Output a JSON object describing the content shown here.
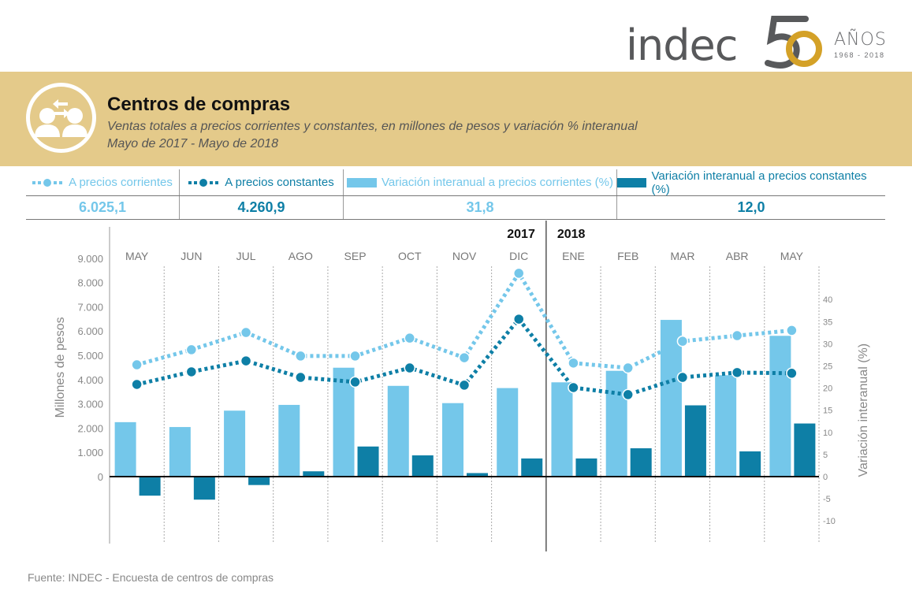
{
  "logo": {
    "wordmark": "indec",
    "anniversary": "50",
    "anios": "AÑOS",
    "years": "1968 - 2018",
    "colors": {
      "gray": "#58595b",
      "gold": "#d4a127"
    }
  },
  "header": {
    "icon": "people-exchange-icon",
    "title": "Centros de compras",
    "subtitle": "Ventas totales a precios corrientes y constantes, en millones de pesos y variación % interanual",
    "period": "Mayo de 2017 - Mayo de 2018",
    "band_color": "#e4ca8a"
  },
  "legend": {
    "items": [
      {
        "label": "A precios corrientes",
        "symbol": "dotted-line-light",
        "value": "6.025,1"
      },
      {
        "label": "A precios constantes",
        "symbol": "dotted-line-dark",
        "value": "4.260,9"
      },
      {
        "label": "Variación interanual a precios corrientes (%)",
        "symbol": "bar-light",
        "value": "31,8"
      },
      {
        "label": "Variación interanual a precios constantes (%)",
        "symbol": "bar-dark",
        "value": "12,0"
      }
    ]
  },
  "chart_data": {
    "type": "bar",
    "title": "Centros de compras",
    "categories": [
      "MAY",
      "JUN",
      "JUL",
      "AGO",
      "SEP",
      "OCT",
      "NOV",
      "DIC",
      "ENE",
      "FEB",
      "MAR",
      "ABR",
      "MAY"
    ],
    "year_labels": [
      {
        "label": "2017",
        "last_index": 7
      },
      {
        "label": "2018",
        "first_index": 8
      }
    ],
    "ylabel": "Millones de pesos",
    "y2label": "Variación interanual (%)",
    "ylim": [
      0,
      9000
    ],
    "yticks": [
      "9.000",
      "8.000",
      "7.000",
      "6.000",
      "5.000",
      "4.000",
      "3.000",
      "2.000",
      "1.000",
      "0"
    ],
    "y2lim": [
      -10,
      40
    ],
    "y2ticks": [
      "40",
      "35",
      "30",
      "25",
      "20",
      "15",
      "10",
      "5",
      "0",
      "-5",
      "-10"
    ],
    "grid": "vertical dotted separators between months",
    "series": [
      {
        "name": "A precios corrientes",
        "type": "line",
        "axis": "left",
        "color": "#74c7ea",
        "values": [
          4610,
          5230,
          5940,
          4970,
          4970,
          5710,
          4900,
          8380,
          4680,
          4480,
          5580,
          5810,
          6025.1
        ]
      },
      {
        "name": "A precios constantes",
        "type": "line",
        "axis": "left",
        "color": "#0e7fa6",
        "values": [
          3800,
          4320,
          4770,
          4090,
          3900,
          4480,
          3770,
          6490,
          3670,
          3380,
          4090,
          4290,
          4260.9
        ]
      },
      {
        "name": "Variación interanual a precios corrientes (%)",
        "type": "bar",
        "axis": "right",
        "color": "#74c7ea",
        "values": [
          12.3,
          11.2,
          14.9,
          16.2,
          24.6,
          20.5,
          16.6,
          20.0,
          21.3,
          23.9,
          35.4,
          22.9,
          31.8
        ]
      },
      {
        "name": "Variación interanual a precios constantes (%)",
        "type": "bar",
        "axis": "right",
        "color": "#0e7fa6",
        "values": [
          -4.3,
          -5.2,
          -1.9,
          1.2,
          6.8,
          4.8,
          0.8,
          4.1,
          4.1,
          6.4,
          16.1,
          5.7,
          12.0
        ]
      }
    ]
  },
  "footer": {
    "source": "Fuente:  INDEC - Encuesta de centros de compras"
  }
}
